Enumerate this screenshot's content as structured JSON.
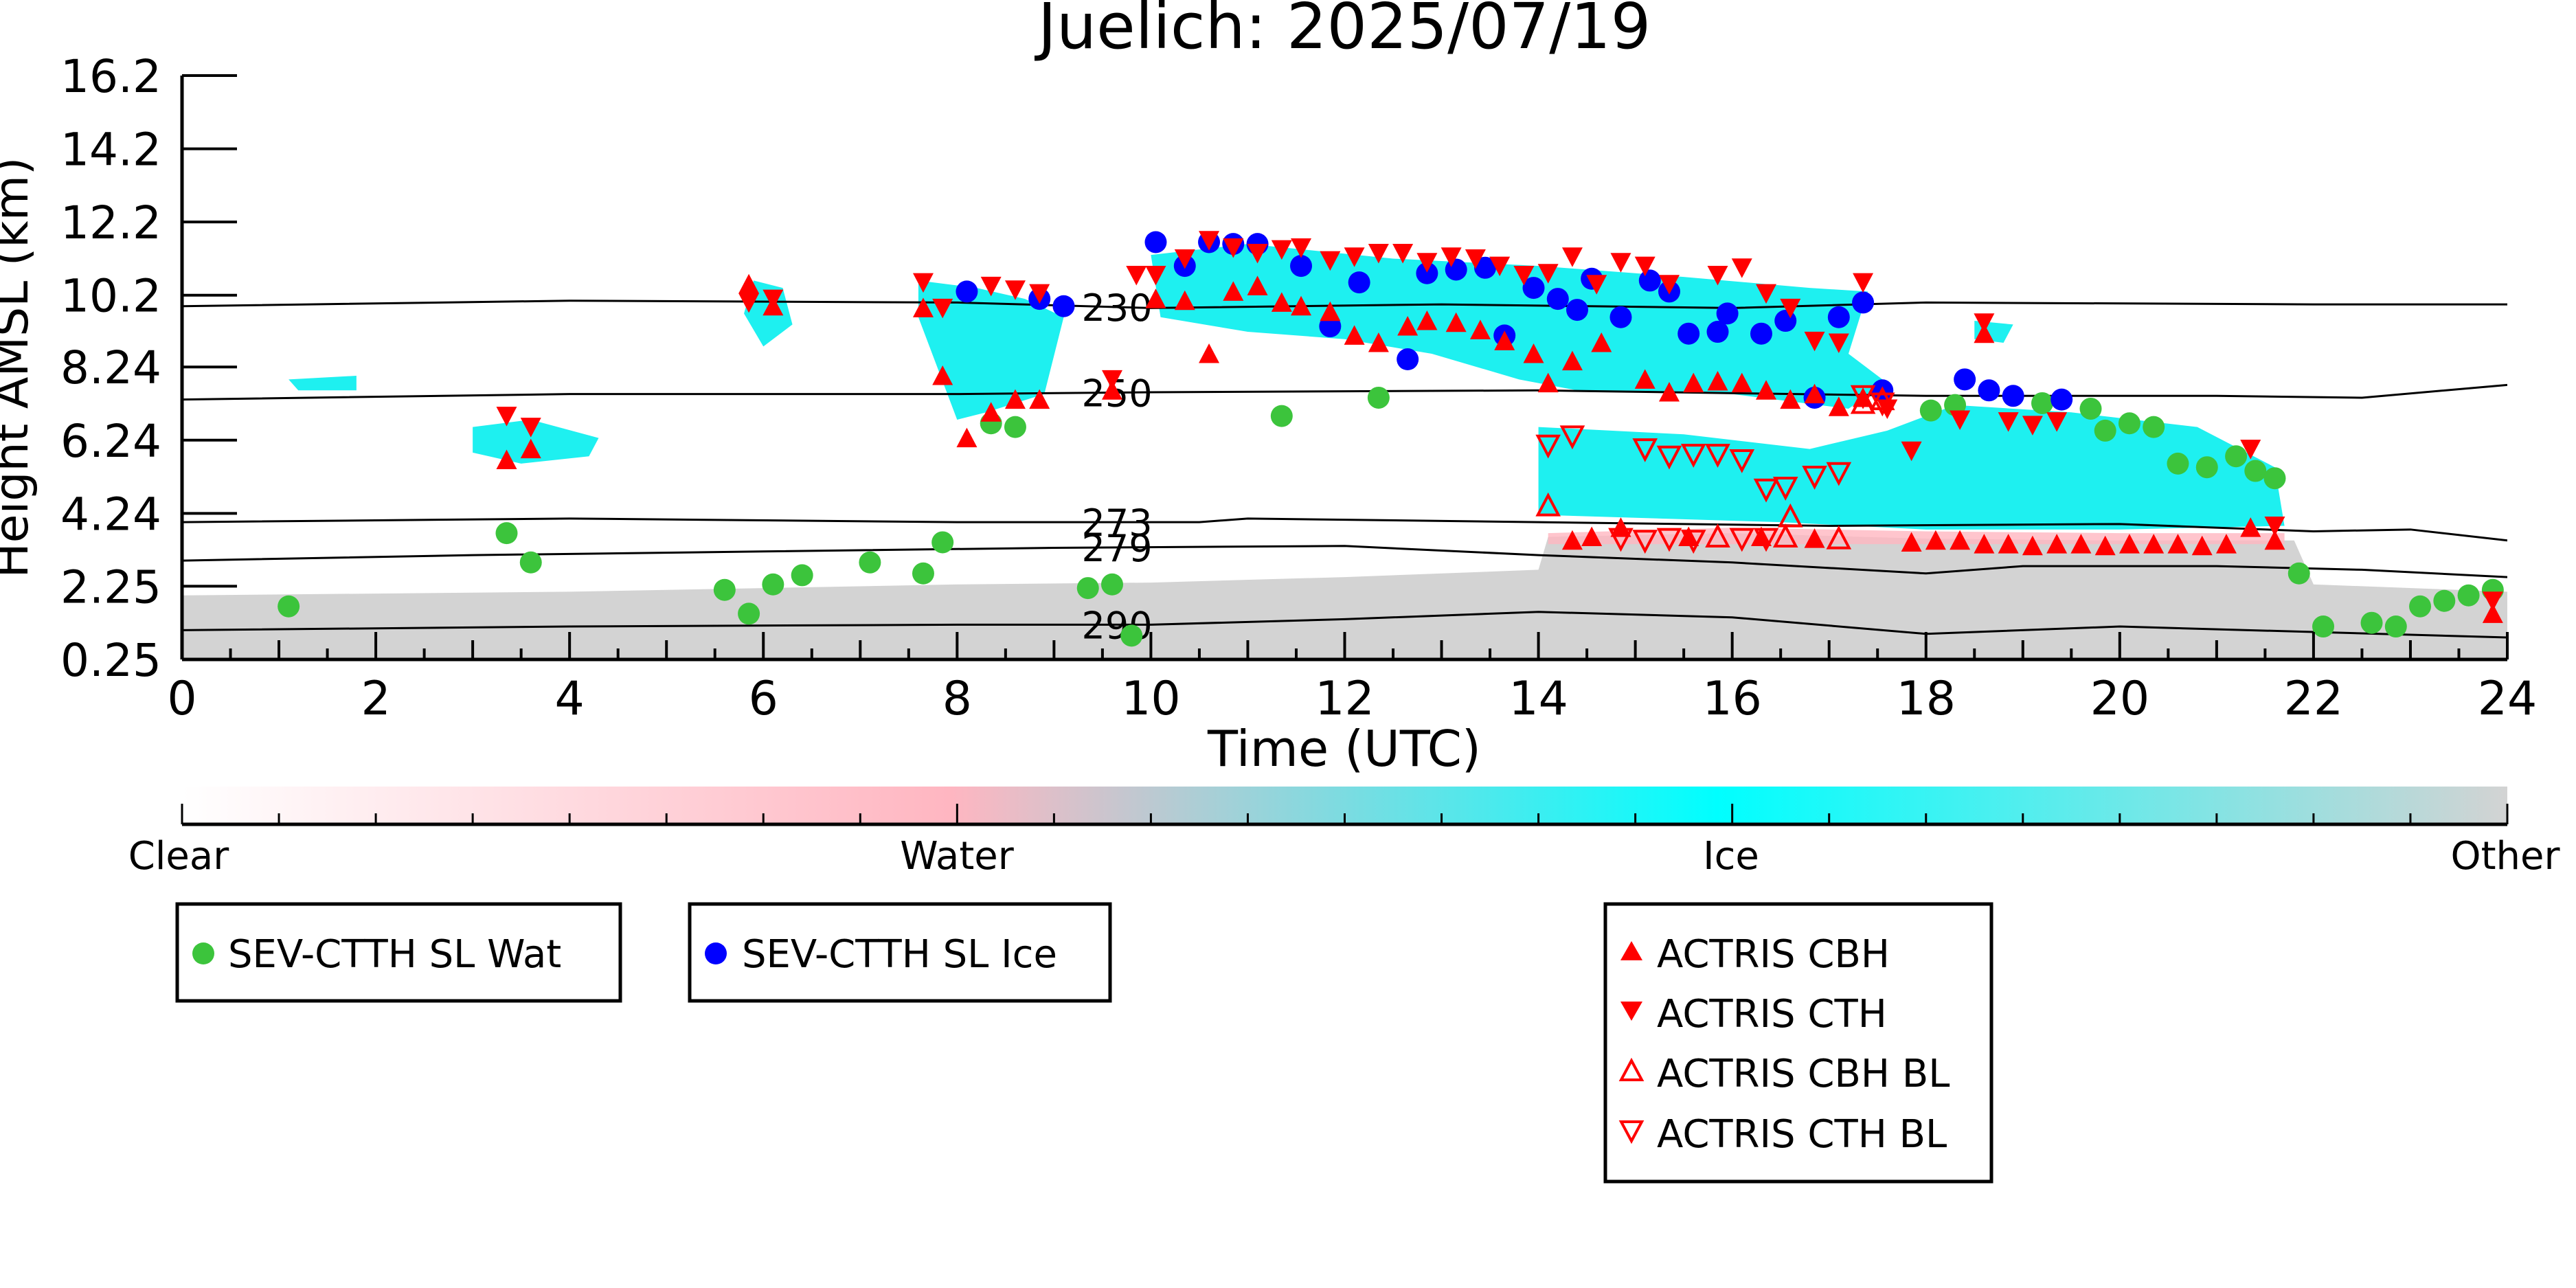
{
  "chart_data": {
    "type": "scatter",
    "title": "Juelich: 2025/07/19",
    "xlabel": "Time (UTC)",
    "ylabel": "Height AMSL (km)",
    "xlim": [
      0,
      24
    ],
    "ylim": [
      0.25,
      16.2
    ],
    "x_ticks": [
      "0",
      "2",
      "4",
      "6",
      "8",
      "10",
      "12",
      "14",
      "16",
      "18",
      "20",
      "22",
      "24"
    ],
    "y_ticks": [
      {
        "value": 0.25,
        "label": "0.25"
      },
      {
        "value": 2.25,
        "label": "2.25"
      },
      {
        "value": 4.24,
        "label": "4.24"
      },
      {
        "value": 6.24,
        "label": "6.24"
      },
      {
        "value": 8.24,
        "label": "8.24"
      },
      {
        "value": 10.2,
        "label": "10.2"
      },
      {
        "value": 12.2,
        "label": "12.2"
      },
      {
        "value": 14.2,
        "label": "14.2"
      },
      {
        "value": 16.2,
        "label": "16.2"
      }
    ],
    "colorbar": {
      "labels": [
        "Clear",
        "Water",
        "Ice",
        "Other"
      ],
      "colors": [
        "#ffffff",
        "#ffb6c1",
        "#00ffff",
        "#d3d3d3"
      ]
    },
    "colors": {
      "wat": "#3cc43c",
      "ice": "#0000ff",
      "actris": "#ff0000",
      "ice_cloud": "#1ef0f0",
      "water_cloud": "#ffb6c1",
      "other": "#d3d3d3"
    },
    "legend": [
      {
        "label": "SEV-CTTH SL Wat",
        "marker": "circle-green"
      },
      {
        "label": "SEV-CTTH SL Ice",
        "marker": "circle-blue"
      },
      {
        "label": "ACTRIS CBH",
        "marker": "triangle-up-filled"
      },
      {
        "label": "ACTRIS CTH",
        "marker": "triangle-down-filled"
      },
      {
        "label": "ACTRIS CBH BL",
        "marker": "triangle-up-open"
      },
      {
        "label": "ACTRIS CTH BL",
        "marker": "triangle-down-open"
      }
    ],
    "isotherms": [
      {
        "label": "230",
        "label_x": 9.65,
        "points": [
          [
            0,
            9.9
          ],
          [
            4,
            10.05
          ],
          [
            8,
            10.0
          ],
          [
            10,
            9.85
          ],
          [
            13,
            9.95
          ],
          [
            16,
            9.85
          ],
          [
            18,
            10.0
          ],
          [
            22,
            9.95
          ],
          [
            24,
            9.95
          ]
        ]
      },
      {
        "label": "250",
        "label_x": 9.65,
        "points": [
          [
            0,
            7.35
          ],
          [
            4,
            7.5
          ],
          [
            8,
            7.5
          ],
          [
            10,
            7.55
          ],
          [
            14,
            7.6
          ],
          [
            18,
            7.45
          ],
          [
            21,
            7.45
          ],
          [
            22.5,
            7.4
          ],
          [
            24,
            7.75
          ]
        ]
      },
      {
        "label": "273",
        "label_x": 9.65,
        "points": [
          [
            0,
            4.0
          ],
          [
            4,
            4.1
          ],
          [
            8,
            4.0
          ],
          [
            10.5,
            4.0
          ],
          [
            11,
            4.1
          ],
          [
            14,
            4.0
          ],
          [
            17,
            3.9
          ],
          [
            20,
            3.95
          ],
          [
            22,
            3.75
          ],
          [
            23,
            3.8
          ],
          [
            24,
            3.5
          ]
        ]
      },
      {
        "label": "279",
        "label_x": 9.65,
        "points": [
          [
            0,
            2.95
          ],
          [
            3,
            3.1
          ],
          [
            6,
            3.2
          ],
          [
            9,
            3.3
          ],
          [
            12,
            3.35
          ],
          [
            14,
            3.1
          ],
          [
            16,
            2.9
          ],
          [
            18,
            2.6
          ],
          [
            19,
            2.8
          ],
          [
            21,
            2.8
          ],
          [
            22.5,
            2.7
          ],
          [
            24,
            2.5
          ]
        ]
      },
      {
        "label": "290",
        "label_x": 9.65,
        "points": [
          [
            0,
            1.05
          ],
          [
            4,
            1.15
          ],
          [
            8,
            1.2
          ],
          [
            10,
            1.2
          ],
          [
            12,
            1.35
          ],
          [
            14,
            1.55
          ],
          [
            16,
            1.4
          ],
          [
            18,
            0.95
          ],
          [
            20,
            1.15
          ],
          [
            22,
            1.0
          ],
          [
            24,
            0.85
          ]
        ]
      }
    ],
    "sev_wat": [
      [
        1.1,
        1.7
      ],
      [
        3.35,
        3.7
      ],
      [
        3.6,
        2.9
      ],
      [
        5.6,
        2.15
      ],
      [
        5.85,
        1.5
      ],
      [
        6.1,
        2.3
      ],
      [
        6.4,
        2.55
      ],
      [
        7.1,
        2.9
      ],
      [
        7.65,
        2.6
      ],
      [
        7.85,
        3.45
      ],
      [
        8.35,
        6.7
      ],
      [
        8.6,
        6.6
      ],
      [
        9.35,
        2.2
      ],
      [
        9.6,
        2.3
      ],
      [
        9.8,
        0.9
      ],
      [
        11.35,
        6.9
      ],
      [
        12.35,
        7.4
      ],
      [
        18.05,
        7.05
      ],
      [
        18.3,
        7.2
      ],
      [
        19.2,
        7.25
      ],
      [
        19.7,
        7.1
      ],
      [
        19.85,
        6.5
      ],
      [
        20.1,
        6.7
      ],
      [
        20.35,
        6.6
      ],
      [
        20.6,
        5.6
      ],
      [
        20.9,
        5.5
      ],
      [
        21.2,
        5.8
      ],
      [
        21.4,
        5.4
      ],
      [
        21.6,
        5.2
      ],
      [
        21.85,
        2.6
      ],
      [
        22.1,
        1.15
      ],
      [
        22.6,
        1.25
      ],
      [
        22.85,
        1.15
      ],
      [
        23.1,
        1.7
      ],
      [
        23.35,
        1.85
      ],
      [
        23.6,
        2.0
      ],
      [
        23.85,
        2.15
      ]
    ],
    "sev_ice": [
      [
        8.1,
        10.3
      ],
      [
        8.85,
        10.1
      ],
      [
        9.1,
        9.9
      ],
      [
        10.05,
        11.65
      ],
      [
        10.35,
        11.0
      ],
      [
        10.6,
        11.65
      ],
      [
        10.85,
        11.6
      ],
      [
        11.1,
        11.6
      ],
      [
        11.55,
        11.0
      ],
      [
        11.85,
        9.35
      ],
      [
        12.15,
        10.55
      ],
      [
        12.65,
        8.45
      ],
      [
        12.85,
        10.8
      ],
      [
        13.15,
        10.9
      ],
      [
        13.45,
        10.95
      ],
      [
        13.65,
        9.1
      ],
      [
        13.95,
        10.4
      ],
      [
        14.2,
        10.1
      ],
      [
        14.4,
        9.8
      ],
      [
        14.55,
        10.65
      ],
      [
        14.85,
        9.6
      ],
      [
        15.15,
        10.6
      ],
      [
        15.35,
        10.3
      ],
      [
        15.55,
        9.15
      ],
      [
        15.85,
        9.2
      ],
      [
        15.95,
        9.7
      ],
      [
        16.3,
        9.15
      ],
      [
        16.55,
        9.5
      ],
      [
        16.85,
        7.4
      ],
      [
        17.1,
        9.6
      ],
      [
        17.35,
        10.0
      ],
      [
        17.55,
        7.6
      ],
      [
        18.4,
        7.9
      ],
      [
        18.65,
        7.6
      ],
      [
        18.9,
        7.45
      ],
      [
        19.4,
        7.35
      ]
    ],
    "actris_cbh": [
      [
        3.35,
        5.7
      ],
      [
        3.6,
        6.0
      ],
      [
        5.85,
        10.5
      ],
      [
        6.1,
        9.9
      ],
      [
        7.65,
        9.85
      ],
      [
        7.85,
        8.0
      ],
      [
        8.1,
        6.3
      ],
      [
        8.35,
        7.0
      ],
      [
        8.6,
        7.35
      ],
      [
        8.85,
        7.35
      ],
      [
        9.6,
        7.6
      ],
      [
        10.05,
        10.1
      ],
      [
        10.35,
        10.05
      ],
      [
        10.6,
        8.6
      ],
      [
        10.85,
        10.3
      ],
      [
        11.1,
        10.45
      ],
      [
        11.35,
        10.0
      ],
      [
        11.55,
        9.9
      ],
      [
        11.85,
        9.75
      ],
      [
        12.1,
        9.1
      ],
      [
        12.35,
        8.9
      ],
      [
        12.65,
        9.35
      ],
      [
        12.85,
        9.5
      ],
      [
        13.15,
        9.45
      ],
      [
        13.4,
        9.25
      ],
      [
        13.65,
        8.95
      ],
      [
        13.95,
        8.6
      ],
      [
        14.1,
        7.8
      ],
      [
        14.35,
        8.4
      ],
      [
        14.65,
        8.9
      ],
      [
        15.1,
        7.9
      ],
      [
        15.35,
        7.55
      ],
      [
        15.6,
        7.8
      ],
      [
        15.85,
        7.85
      ],
      [
        16.1,
        7.8
      ],
      [
        16.35,
        7.6
      ],
      [
        16.6,
        7.35
      ],
      [
        16.85,
        7.5
      ],
      [
        17.1,
        7.15
      ],
      [
        17.35,
        7.4
      ],
      [
        18.6,
        9.15
      ],
      [
        14.35,
        3.5
      ],
      [
        14.55,
        3.6
      ],
      [
        14.85,
        3.85
      ],
      [
        15.55,
        3.6
      ],
      [
        16.3,
        3.6
      ],
      [
        16.85,
        3.55
      ],
      [
        17.85,
        3.45
      ],
      [
        18.1,
        3.5
      ],
      [
        18.35,
        3.5
      ],
      [
        18.6,
        3.4
      ],
      [
        18.85,
        3.4
      ],
      [
        19.1,
        3.35
      ],
      [
        19.35,
        3.4
      ],
      [
        19.6,
        3.4
      ],
      [
        19.85,
        3.35
      ],
      [
        20.1,
        3.4
      ],
      [
        20.35,
        3.4
      ],
      [
        20.6,
        3.4
      ],
      [
        20.85,
        3.35
      ],
      [
        21.1,
        3.4
      ],
      [
        21.35,
        3.85
      ],
      [
        21.6,
        3.5
      ],
      [
        23.85,
        1.5
      ]
    ],
    "actris_cth": [
      [
        3.35,
        6.9
      ],
      [
        3.6,
        6.6
      ],
      [
        5.85,
        10.0
      ],
      [
        6.1,
        10.1
      ],
      [
        7.65,
        10.55
      ],
      [
        7.85,
        9.85
      ],
      [
        8.35,
        10.45
      ],
      [
        8.6,
        10.35
      ],
      [
        8.85,
        10.25
      ],
      [
        9.6,
        7.9
      ],
      [
        9.85,
        10.75
      ],
      [
        10.05,
        10.75
      ],
      [
        10.35,
        11.2
      ],
      [
        10.6,
        11.7
      ],
      [
        10.85,
        11.5
      ],
      [
        11.1,
        11.35
      ],
      [
        11.35,
        11.45
      ],
      [
        11.55,
        11.5
      ],
      [
        11.85,
        11.15
      ],
      [
        12.1,
        11.25
      ],
      [
        12.35,
        11.35
      ],
      [
        12.6,
        11.35
      ],
      [
        12.85,
        11.1
      ],
      [
        13.1,
        11.25
      ],
      [
        13.35,
        11.2
      ],
      [
        13.6,
        11.0
      ],
      [
        13.85,
        10.75
      ],
      [
        14.1,
        10.8
      ],
      [
        14.35,
        11.25
      ],
      [
        14.6,
        10.5
      ],
      [
        14.85,
        11.1
      ],
      [
        15.1,
        11.0
      ],
      [
        15.35,
        10.5
      ],
      [
        15.85,
        10.75
      ],
      [
        16.1,
        10.95
      ],
      [
        16.35,
        10.25
      ],
      [
        16.6,
        9.85
      ],
      [
        16.85,
        8.95
      ],
      [
        17.1,
        8.9
      ],
      [
        17.35,
        10.55
      ],
      [
        17.6,
        7.1
      ],
      [
        17.85,
        5.95
      ],
      [
        18.35,
        6.8
      ],
      [
        18.6,
        9.45
      ],
      [
        18.85,
        6.75
      ],
      [
        19.1,
        6.65
      ],
      [
        19.35,
        6.75
      ],
      [
        21.35,
        6.0
      ],
      [
        21.6,
        3.9
      ],
      [
        23.85,
        1.85
      ]
    ],
    "actris_cbh_bl": [
      [
        14.1,
        4.45
      ],
      [
        15.85,
        3.6
      ],
      [
        16.55,
        3.6
      ],
      [
        16.6,
        4.15
      ],
      [
        17.1,
        3.55
      ],
      [
        17.35,
        7.25
      ],
      [
        17.55,
        7.35
      ]
    ],
    "actris_cth_bl": [
      [
        14.1,
        6.1
      ],
      [
        14.35,
        6.35
      ],
      [
        15.1,
        6.0
      ],
      [
        15.35,
        5.8
      ],
      [
        15.6,
        5.85
      ],
      [
        15.85,
        5.85
      ],
      [
        16.1,
        5.7
      ],
      [
        16.35,
        4.9
      ],
      [
        16.55,
        4.95
      ],
      [
        16.85,
        5.25
      ],
      [
        17.1,
        5.35
      ],
      [
        17.35,
        7.45
      ],
      [
        17.55,
        7.25
      ],
      [
        14.85,
        3.55
      ],
      [
        15.1,
        3.5
      ],
      [
        15.35,
        3.55
      ],
      [
        15.6,
        3.5
      ],
      [
        16.1,
        3.55
      ],
      [
        16.35,
        3.55
      ]
    ]
  }
}
